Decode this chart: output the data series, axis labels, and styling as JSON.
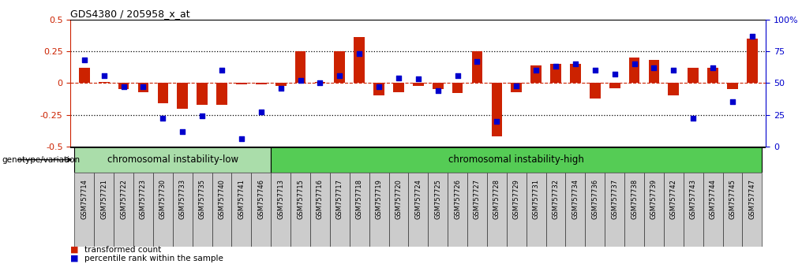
{
  "title": "GDS4380 / 205958_x_at",
  "samples": [
    "GSM757714",
    "GSM757721",
    "GSM757722",
    "GSM757723",
    "GSM757730",
    "GSM757733",
    "GSM757735",
    "GSM757740",
    "GSM757741",
    "GSM757746",
    "GSM757713",
    "GSM757715",
    "GSM757716",
    "GSM757717",
    "GSM757718",
    "GSM757719",
    "GSM757720",
    "GSM757724",
    "GSM757725",
    "GSM757726",
    "GSM757727",
    "GSM757728",
    "GSM757729",
    "GSM757731",
    "GSM757732",
    "GSM757734",
    "GSM757736",
    "GSM757737",
    "GSM757738",
    "GSM757739",
    "GSM757742",
    "GSM757743",
    "GSM757744",
    "GSM757745",
    "GSM757747"
  ],
  "bar_values": [
    0.12,
    0.01,
    -0.05,
    -0.07,
    -0.16,
    -0.2,
    -0.17,
    -0.17,
    -0.01,
    -0.01,
    -0.02,
    0.25,
    0.01,
    0.25,
    0.36,
    -0.1,
    -0.07,
    -0.02,
    -0.05,
    -0.08,
    0.25,
    -0.42,
    -0.07,
    0.14,
    0.15,
    0.15,
    -0.12,
    -0.04,
    0.2,
    0.18,
    -0.1,
    0.12,
    0.12,
    -0.05,
    0.35
  ],
  "dot_values_pct": [
    68,
    56,
    47,
    47,
    22,
    12,
    24,
    60,
    6,
    27,
    46,
    52,
    50,
    56,
    73,
    47,
    54,
    53,
    44,
    56,
    67,
    20,
    48,
    60,
    63,
    65,
    60,
    57,
    65,
    62,
    60,
    22,
    62,
    35,
    87
  ],
  "group1_label": "chromosomal instability-low",
  "group1_count": 10,
  "group2_label": "chromosomal instability-high",
  "group2_count": 25,
  "genotype_label": "genotype/variation",
  "bar_color": "#cc2200",
  "dot_color": "#0000cc",
  "ylim": [
    -0.5,
    0.5
  ],
  "y_ticks": [
    -0.5,
    -0.25,
    0.0,
    0.25,
    0.5
  ],
  "y2_ticks": [
    0,
    25,
    50,
    75,
    100
  ],
  "legend_bar_label": "transformed count",
  "legend_dot_label": "percentile rank within the sample",
  "group1_color": "#aaddaa",
  "group2_color": "#55cc55",
  "xtick_bg_color": "#cccccc",
  "xtick_border_color": "#333333"
}
